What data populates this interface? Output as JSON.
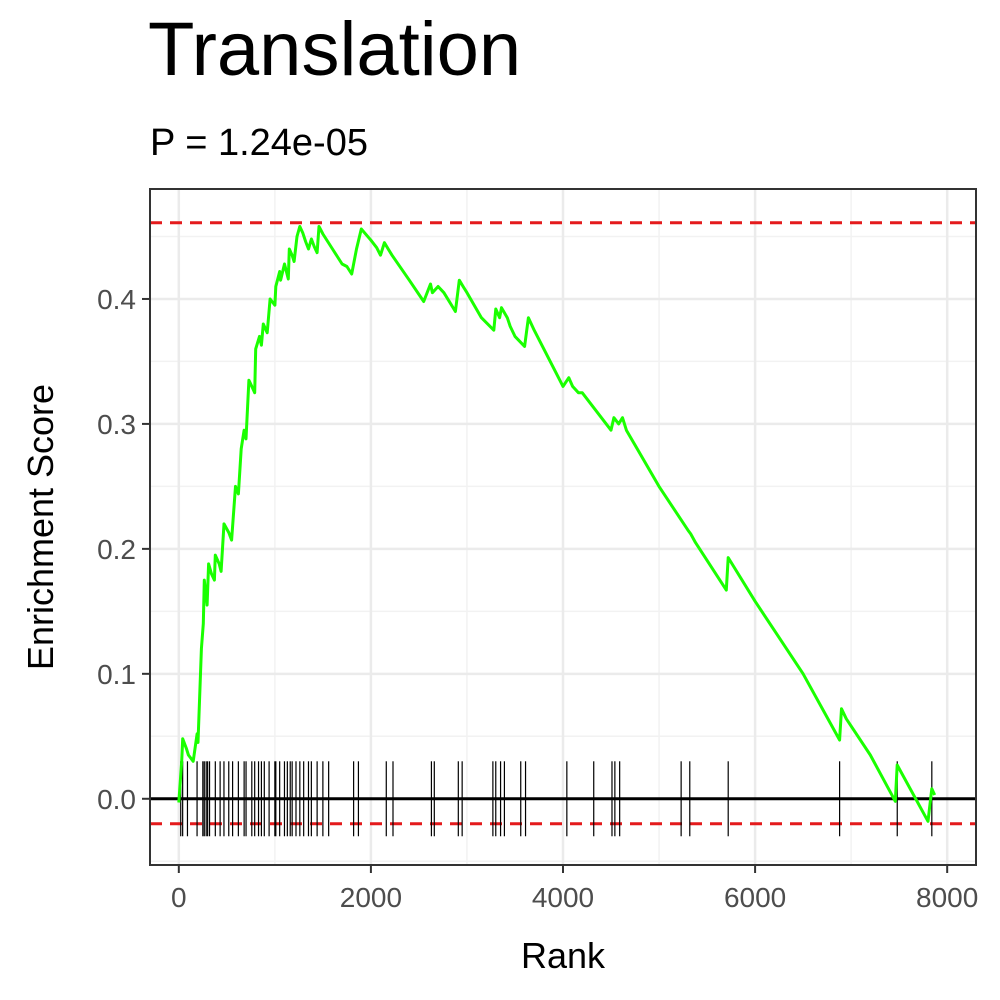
{
  "chart_data": {
    "type": "line",
    "title": "Translation",
    "subtitle": "P = 1.24e-05",
    "xlabel": "Rank",
    "ylabel": "Enrichment Score",
    "xlim": [
      -300,
      8300
    ],
    "ylim": [
      -0.053,
      0.488
    ],
    "x_ticks": [
      0,
      2000,
      4000,
      6000,
      8000
    ],
    "x_tick_labels": [
      "0",
      "2000",
      "4000",
      "6000",
      "8000"
    ],
    "y_ticks": [
      0.0,
      0.1,
      0.2,
      0.3,
      0.4
    ],
    "y_tick_labels": [
      "0.0",
      "0.1",
      "0.2",
      "0.3",
      "0.4"
    ],
    "grid": true,
    "reference_lines": [
      {
        "y": 0.461,
        "style": "dashed",
        "color": "#e41a1c"
      },
      {
        "y": -0.02,
        "style": "dashed",
        "color": "#e41a1c"
      },
      {
        "y": 0.0,
        "style": "solid",
        "color": "#000000"
      }
    ],
    "series": [
      {
        "color": "#1aff00",
        "x": [
          0,
          30,
          40,
          80,
          100,
          150,
          190,
          200,
          235,
          255,
          265,
          275,
          285,
          295,
          310,
          340,
          370,
          380,
          420,
          440,
          470,
          520,
          550,
          590,
          620,
          650,
          680,
          700,
          730,
          760,
          790,
          800,
          840,
          860,
          880,
          920,
          950,
          1000,
          1010,
          1050,
          1060,
          1100,
          1120,
          1140,
          1150,
          1180,
          1200,
          1230,
          1260,
          1290,
          1320,
          1350,
          1380,
          1410,
          1440,
          1460,
          1500,
          1550,
          1600,
          1650,
          1700,
          1750,
          1800,
          1850,
          1900,
          2000,
          2060,
          2100,
          2140,
          2180,
          2220,
          2400,
          2550,
          2620,
          2640,
          2700,
          2760,
          2880,
          2920,
          2960,
          3000,
          3150,
          3280,
          3300,
          3340,
          3360,
          3420,
          3450,
          3500,
          3600,
          3640,
          3700,
          4000,
          4060,
          4100,
          4160,
          4200,
          4500,
          4530,
          4580,
          4620,
          4660,
          5000,
          5300,
          5330,
          5380,
          5700,
          5720,
          6000,
          6500,
          6880,
          6900,
          6950,
          7200,
          7460,
          7480,
          7800,
          7840,
          7870
        ],
        "y": [
          -0.003,
          0.03,
          0.048,
          0.04,
          0.035,
          0.03,
          0.052,
          0.045,
          0.12,
          0.14,
          0.175,
          0.168,
          0.163,
          0.155,
          0.188,
          0.18,
          0.175,
          0.195,
          0.188,
          0.182,
          0.22,
          0.213,
          0.207,
          0.25,
          0.244,
          0.28,
          0.295,
          0.288,
          0.335,
          0.33,
          0.325,
          0.36,
          0.37,
          0.363,
          0.38,
          0.373,
          0.4,
          0.395,
          0.41,
          0.422,
          0.415,
          0.428,
          0.422,
          0.416,
          0.44,
          0.435,
          0.43,
          0.45,
          0.458,
          0.453,
          0.446,
          0.44,
          0.448,
          0.442,
          0.437,
          0.458,
          0.452,
          0.446,
          0.44,
          0.434,
          0.428,
          0.426,
          0.42,
          0.44,
          0.456,
          0.447,
          0.441,
          0.435,
          0.445,
          0.44,
          0.435,
          0.415,
          0.398,
          0.412,
          0.405,
          0.41,
          0.405,
          0.39,
          0.415,
          0.41,
          0.405,
          0.385,
          0.375,
          0.392,
          0.385,
          0.393,
          0.385,
          0.378,
          0.37,
          0.362,
          0.385,
          0.375,
          0.33,
          0.337,
          0.33,
          0.325,
          0.325,
          0.295,
          0.305,
          0.3,
          0.305,
          0.295,
          0.25,
          0.215,
          0.212,
          0.205,
          0.167,
          0.193,
          0.158,
          0.1,
          0.047,
          0.072,
          0.064,
          0.035,
          -0.002,
          0.027,
          -0.018,
          0.008,
          0.003
        ]
      }
    ],
    "rug_ranks": [
      20,
      40,
      90,
      190,
      250,
      265,
      285,
      300,
      320,
      380,
      430,
      470,
      520,
      560,
      620,
      680,
      700,
      760,
      790,
      830,
      860,
      890,
      940,
      1000,
      1010,
      1050,
      1100,
      1130,
      1160,
      1180,
      1220,
      1260,
      1300,
      1350,
      1380,
      1440,
      1500,
      1560,
      1820,
      1870,
      2160,
      2230,
      2630,
      2660,
      2910,
      2950,
      3270,
      3300,
      3350,
      3390,
      3560,
      3610,
      4040,
      4320,
      4510,
      4540,
      4590,
      5230,
      5320,
      5720,
      6880,
      7480,
      7840
    ]
  }
}
